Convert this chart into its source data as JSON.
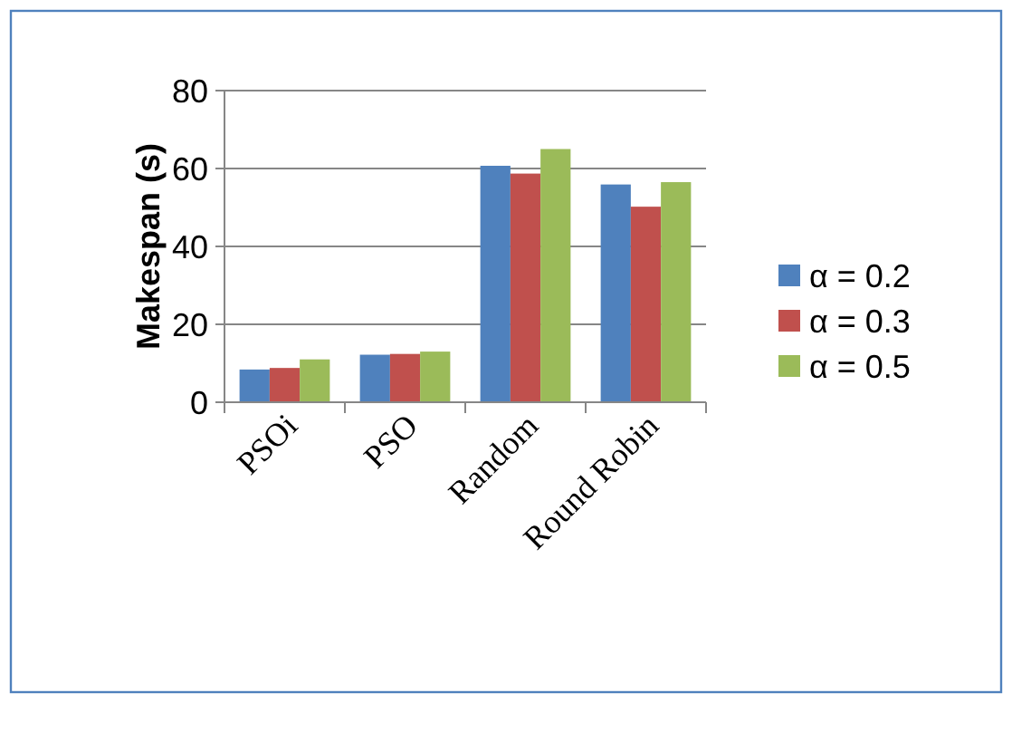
{
  "chart_data": {
    "type": "bar",
    "ylabel": "Makespan (s)",
    "categories": [
      "PSOi",
      "PSO",
      "Random",
      "Round Robin"
    ],
    "series": [
      {
        "name": "α = 0.2",
        "color": "#4f81bd",
        "values": [
          8.4,
          12.2,
          60.7,
          55.9
        ]
      },
      {
        "name": "α = 0.3",
        "color": "#c0504d",
        "values": [
          8.8,
          12.4,
          58.7,
          50.2
        ]
      },
      {
        "name": "α = 0.5",
        "color": "#9bbb59",
        "values": [
          11.0,
          13.0,
          65.0,
          56.5
        ]
      }
    ],
    "ylim": [
      0,
      80
    ],
    "yticks": [
      0,
      20,
      40,
      60,
      80
    ],
    "grid": "y",
    "legend": "right"
  }
}
